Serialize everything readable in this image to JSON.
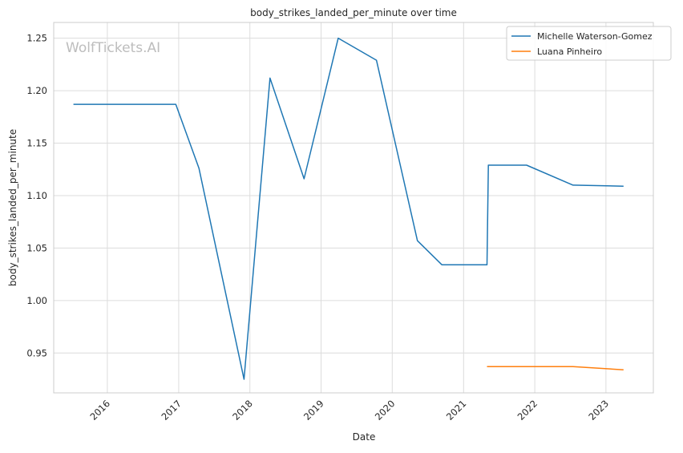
{
  "chart_data": {
    "type": "line",
    "title": "body_strikes_landed_per_minute over time",
    "xlabel": "Date",
    "ylabel": "body_strikes_landed_per_minute",
    "watermark": "WolfTickets.AI",
    "x_type": "date",
    "xlim": [
      "2015-04-01",
      "2023-09-01"
    ],
    "ylim": [
      0.912,
      1.265
    ],
    "x_ticks": [
      {
        "label": "2016",
        "date": "2016-01-01"
      },
      {
        "label": "2017",
        "date": "2017-01-01"
      },
      {
        "label": "2018",
        "date": "2018-01-01"
      },
      {
        "label": "2019",
        "date": "2019-01-01"
      },
      {
        "label": "2020",
        "date": "2020-01-01"
      },
      {
        "label": "2021",
        "date": "2021-01-01"
      },
      {
        "label": "2022",
        "date": "2022-01-01"
      },
      {
        "label": "2023",
        "date": "2023-01-01"
      }
    ],
    "y_ticks": [
      {
        "label": "0.95",
        "value": 0.95
      },
      {
        "label": "1.00",
        "value": 1.0
      },
      {
        "label": "1.05",
        "value": 1.05
      },
      {
        "label": "1.10",
        "value": 1.1
      },
      {
        "label": "1.15",
        "value": 1.15
      },
      {
        "label": "1.20",
        "value": 1.2
      },
      {
        "label": "1.25",
        "value": 1.25
      }
    ],
    "grid": true,
    "legend_position": "top-right",
    "series": [
      {
        "name": "Michelle Waterson-Gomez",
        "color": "#1f77b4",
        "points": [
          {
            "x": "2015-07-11",
            "y": 1.187
          },
          {
            "x": "2016-12-17",
            "y": 1.187
          },
          {
            "x": "2017-04-15",
            "y": 1.126
          },
          {
            "x": "2017-12-02",
            "y": 0.925
          },
          {
            "x": "2018-04-14",
            "y": 1.212
          },
          {
            "x": "2018-10-06",
            "y": 1.116
          },
          {
            "x": "2019-03-30",
            "y": 1.25
          },
          {
            "x": "2019-10-12",
            "y": 1.229
          },
          {
            "x": "2020-05-09",
            "y": 1.057
          },
          {
            "x": "2020-09-12",
            "y": 1.034
          },
          {
            "x": "2021-05-01",
            "y": 1.034
          },
          {
            "x": "2021-05-08",
            "y": 1.129
          },
          {
            "x": "2021-11-20",
            "y": 1.129
          },
          {
            "x": "2022-07-16",
            "y": 1.11
          },
          {
            "x": "2023-04-01",
            "y": 1.109
          }
        ]
      },
      {
        "name": "Luana Pinheiro",
        "color": "#ff7f0e",
        "points": [
          {
            "x": "2021-05-01",
            "y": 0.937
          },
          {
            "x": "2022-07-16",
            "y": 0.937
          },
          {
            "x": "2023-04-01",
            "y": 0.934
          }
        ]
      }
    ]
  }
}
